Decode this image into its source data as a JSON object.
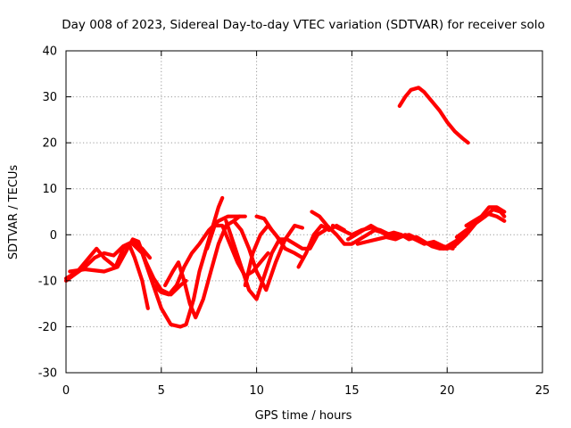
{
  "chart_data": {
    "type": "line",
    "title": "Day 008 of 2023, Sidereal Day-to-day VTEC variation (SDTVAR) for receiver solo",
    "xlabel": "GPS time / hours",
    "ylabel": "SDTVAR / TECUs",
    "xlim": [
      0,
      25
    ],
    "ylim": [
      -30,
      40
    ],
    "xticks": [
      0,
      5,
      10,
      15,
      20,
      25
    ],
    "yticks": [
      -30,
      -20,
      -10,
      0,
      10,
      20,
      30,
      40
    ],
    "grid": true,
    "color": "#ff0000",
    "series": [
      {
        "name": "s1",
        "x": [
          0.0,
          0.5,
          1.0,
          1.5,
          2.0,
          2.5,
          3.0,
          3.5,
          4.0,
          4.4
        ],
        "y": [
          -10,
          -8.5,
          -7,
          -5,
          -4,
          -4.5,
          -2.5,
          -1.5,
          -3,
          -5
        ]
      },
      {
        "name": "s2",
        "x": [
          0.0,
          0.6,
          1.2,
          1.6,
          2.0,
          2.6,
          3.0,
          3.3,
          3.6,
          4.0,
          4.3
        ],
        "y": [
          -9.5,
          -8,
          -5,
          -3,
          -5,
          -7,
          -3,
          -2,
          -5,
          -10,
          -16
        ]
      },
      {
        "name": "s3",
        "x": [
          0.2,
          1.0,
          2.0,
          2.7,
          3.1,
          3.5,
          3.8,
          4.2,
          4.6,
          5.0,
          5.5,
          6.0,
          6.3
        ],
        "y": [
          -8,
          -7.5,
          -8,
          -7,
          -4,
          -1,
          -1.5,
          -6,
          -9.5,
          -12,
          -13,
          -11,
          -10
        ]
      },
      {
        "name": "s4",
        "x": [
          3.5,
          4.0,
          4.5,
          5.0,
          5.5,
          6.0,
          6.3,
          6.7,
          7.0,
          7.5,
          8.0,
          8.2
        ],
        "y": [
          -2,
          -4,
          -10,
          -16,
          -19.5,
          -20,
          -19.5,
          -14,
          -8,
          -1,
          6,
          8
        ]
      },
      {
        "name": "s5",
        "x": [
          4.6,
          5.0,
          5.4,
          5.8,
          6.2,
          6.6,
          7.0,
          7.5,
          8.0,
          8.5,
          9.0,
          9.4
        ],
        "y": [
          -11,
          -12.5,
          -13,
          -11,
          -7,
          -4,
          -2,
          1,
          3,
          4,
          4,
          4
        ]
      },
      {
        "name": "s6",
        "x": [
          5.2,
          5.6,
          5.9,
          6.2,
          6.5,
          6.8,
          7.2,
          7.6,
          8.0,
          8.4,
          8.8,
          9.1
        ],
        "y": [
          -11,
          -8,
          -6,
          -10,
          -15,
          -18,
          -14,
          -8,
          -2,
          2,
          3,
          4
        ]
      },
      {
        "name": "s7",
        "x": [
          7.4,
          7.8,
          8.2,
          8.6,
          9.0,
          9.4,
          9.8,
          10.2,
          10.6
        ],
        "y": [
          -3,
          2,
          2,
          -2,
          -6,
          -9,
          -8,
          -6,
          -4
        ]
      },
      {
        "name": "s8",
        "x": [
          8.4,
          8.8,
          9.2,
          9.6,
          10.0,
          10.4,
          10.8,
          11.2
        ],
        "y": [
          3,
          -2,
          -7,
          -12,
          -14,
          -9,
          -4,
          -1
        ]
      },
      {
        "name": "s9",
        "x": [
          8.8,
          9.2,
          9.6,
          10.0,
          10.5,
          11.0,
          11.5,
          12.0,
          12.4
        ],
        "y": [
          3,
          1,
          -3,
          -8,
          -12,
          -6,
          -1,
          2,
          1.5
        ]
      },
      {
        "name": "s10",
        "x": [
          9.4,
          9.8,
          10.2,
          10.6,
          11.0,
          11.5,
          12.0,
          12.4
        ],
        "y": [
          -11,
          -4,
          0,
          2,
          0,
          -3,
          -4,
          -5
        ]
      },
      {
        "name": "s11",
        "x": [
          10.0,
          10.4,
          10.8,
          11.2,
          11.6,
          12.0,
          12.4,
          12.8,
          13.2,
          13.6
        ],
        "y": [
          4,
          3.5,
          1,
          -1,
          -1,
          -2,
          -3,
          -3,
          0,
          1
        ]
      },
      {
        "name": "s12",
        "x": [
          12.2,
          12.6,
          13.0,
          13.4,
          13.8,
          14.2,
          14.6
        ],
        "y": [
          -7,
          -4,
          0,
          2,
          1,
          2,
          1
        ]
      },
      {
        "name": "s13",
        "x": [
          12.9,
          13.3,
          13.7,
          14.2,
          14.6,
          15.0,
          15.4,
          15.8,
          16.2,
          16.6,
          17.0
        ],
        "y": [
          5,
          4,
          2,
          0,
          -2,
          -2,
          -1,
          0,
          1,
          0.5,
          0
        ]
      },
      {
        "name": "s14",
        "x": [
          14.0,
          14.5,
          15.0,
          15.5,
          16.0,
          16.5,
          17.0,
          17.5,
          18.0,
          18.5,
          19.0,
          19.5,
          20.0,
          20.4
        ],
        "y": [
          2,
          1,
          0,
          1,
          1.5,
          1,
          0,
          -0.5,
          0,
          -1,
          -2,
          -2.5,
          -3,
          -2.5
        ]
      },
      {
        "name": "s15",
        "x": [
          14.8,
          15.2,
          15.6,
          16.0,
          16.4,
          16.8,
          17.2,
          17.6,
          18.0,
          18.4,
          18.8,
          19.2,
          19.6,
          20.0,
          20.5,
          21.0
        ],
        "y": [
          -1,
          0,
          1,
          2,
          1,
          0,
          0.5,
          0,
          -1,
          -0.5,
          -1.5,
          -2.5,
          -3,
          -3,
          -2,
          0
        ]
      },
      {
        "name": "s16",
        "x": [
          15.3,
          15.8,
          16.3,
          16.8,
          17.3,
          17.8,
          18.3,
          18.8,
          19.3,
          19.8,
          20.3
        ],
        "y": [
          -2,
          -1.5,
          -1,
          -0.5,
          -1,
          0,
          -1,
          -2,
          -1.5,
          -2.5,
          -3
        ]
      },
      {
        "name": "s17",
        "x": [
          17.5,
          17.8,
          18.1,
          18.5,
          18.8,
          19.2,
          19.6,
          20.0,
          20.4,
          20.8,
          21.1
        ],
        "y": [
          28,
          30,
          31.5,
          32,
          31,
          29,
          27,
          24.5,
          22.5,
          21,
          20
        ]
      },
      {
        "name": "s18",
        "x": [
          19.8,
          20.2,
          20.6,
          21.0,
          21.4,
          21.8,
          22.2,
          22.6,
          23.0
        ],
        "y": [
          -3,
          -2,
          -1,
          0,
          2,
          4,
          6,
          6,
          5
        ]
      },
      {
        "name": "s19",
        "x": [
          20.5,
          21.0,
          21.5,
          22.0,
          22.4,
          22.8,
          23.0
        ],
        "y": [
          -0.5,
          1,
          2.5,
          4,
          5.5,
          5,
          4
        ]
      },
      {
        "name": "s20",
        "x": [
          21.0,
          21.4,
          21.8,
          22.2,
          22.6,
          23.0
        ],
        "y": [
          2,
          3,
          4,
          4.5,
          4,
          3
        ]
      }
    ]
  }
}
